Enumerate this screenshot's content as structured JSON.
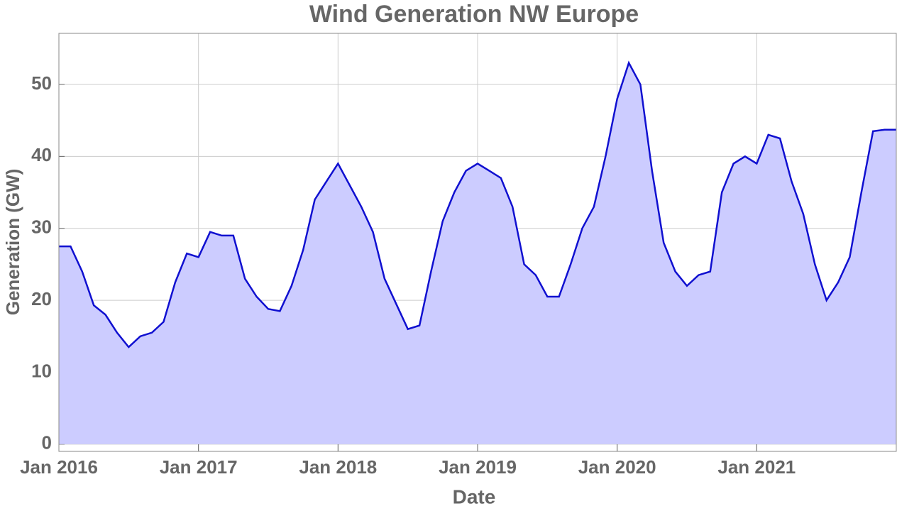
{
  "chart_data": {
    "type": "area",
    "title": "Wind Generation  NW Europe",
    "x_label": "Date",
    "y_label": "Generation (GW)",
    "series": [
      {
        "name": "Wind generation",
        "color": "#1010d0",
        "fill": "#ccccff",
        "x": [
          "2016-01",
          "2016-02",
          "2016-03",
          "2016-04",
          "2016-05",
          "2016-06",
          "2016-07",
          "2016-08",
          "2016-09",
          "2016-10",
          "2016-11",
          "2016-12",
          "2017-01",
          "2017-02",
          "2017-03",
          "2017-04",
          "2017-05",
          "2017-06",
          "2017-07",
          "2017-08",
          "2017-09",
          "2017-10",
          "2017-11",
          "2017-12",
          "2018-01",
          "2018-02",
          "2018-03",
          "2018-04",
          "2018-05",
          "2018-06",
          "2018-07",
          "2018-08",
          "2018-09",
          "2018-10",
          "2018-11",
          "2018-12",
          "2019-01",
          "2019-02",
          "2019-03",
          "2019-04",
          "2019-05",
          "2019-06",
          "2019-07",
          "2019-08",
          "2019-09",
          "2019-10",
          "2019-11",
          "2019-12",
          "2020-01",
          "2020-02",
          "2020-03",
          "2020-04",
          "2020-05",
          "2020-06",
          "2020-07",
          "2020-08",
          "2020-09",
          "2020-10",
          "2020-11",
          "2020-12",
          "2021-01",
          "2021-02",
          "2021-03",
          "2021-04",
          "2021-05",
          "2021-06",
          "2021-07",
          "2021-08",
          "2021-09",
          "2021-10",
          "2021-11",
          "2021-12",
          "2022-01"
        ],
        "values": [
          27.5,
          27.5,
          24,
          19.3,
          18,
          15.5,
          13.5,
          15,
          15.5,
          17,
          22.5,
          26.5,
          26,
          29.5,
          29,
          29,
          23,
          20.5,
          18.8,
          18.5,
          22,
          27,
          34,
          36.5,
          39,
          36,
          33,
          29.5,
          23,
          19.5,
          16,
          16.5,
          24,
          31,
          35,
          38,
          39,
          38,
          37,
          33,
          25,
          23.5,
          20.5,
          20.5,
          25,
          30,
          33,
          40,
          48,
          53,
          50,
          38,
          28,
          24,
          22,
          23.5,
          24,
          35,
          39,
          40,
          39,
          43,
          42.5,
          36.5,
          32,
          25,
          20,
          22.5,
          26,
          35,
          43.5,
          43.7,
          43.7
        ]
      }
    ],
    "xlim": [
      "2016-01",
      "2022-01"
    ],
    "xticks": [
      {
        "value": "2016-01",
        "label": "Jan 2016"
      },
      {
        "value": "2017-01",
        "label": "Jan 2017"
      },
      {
        "value": "2018-01",
        "label": "Jan 2018"
      },
      {
        "value": "2019-01",
        "label": "Jan 2019"
      },
      {
        "value": "2020-01",
        "label": "Jan 2020"
      },
      {
        "value": "2021-01",
        "label": "Jan 2021"
      }
    ],
    "ylim": [
      -1,
      57.1
    ],
    "yticks": [
      0,
      10,
      20,
      30,
      40,
      50
    ],
    "grid": true
  }
}
